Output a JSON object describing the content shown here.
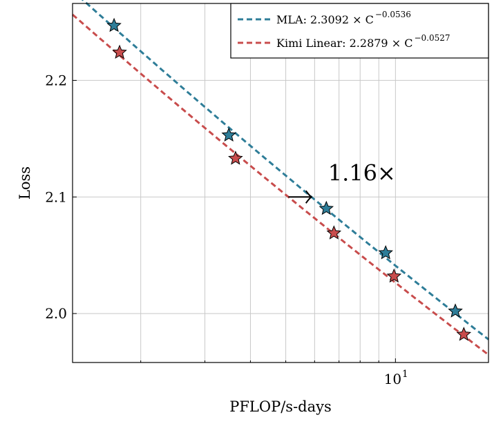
{
  "chart_data": {
    "type": "scatter",
    "xlabel": "PFLOP/s-days",
    "ylabel": "Loss",
    "xscale": "log",
    "xlim": [
      1.3,
      18.0
    ],
    "ylim": [
      1.958,
      2.266
    ],
    "grid": true,
    "legend_position": "top-right",
    "x_ticks": [
      {
        "value": 10,
        "base": "10",
        "exp": "1"
      }
    ],
    "y_ticks": [
      {
        "value": 2.0,
        "label": "2.0"
      },
      {
        "value": 2.1,
        "label": "2.1"
      },
      {
        "value": 2.2,
        "label": "2.2"
      }
    ],
    "series": [
      {
        "name": "MLA",
        "legend_text": "MLA: 2.3092 × C",
        "legend_exp": "−0.0536",
        "color": "#2e7d98",
        "fit": {
          "a": 2.3092,
          "b": -0.0536
        },
        "x": [
          1.69,
          3.49,
          6.46,
          9.4,
          14.6
        ],
        "y": [
          2.247,
          2.153,
          2.09,
          2.052,
          2.002
        ]
      },
      {
        "name": "Kimi Linear",
        "legend_text": "Kimi Linear: 2.2879 × C",
        "legend_exp": "−0.0527",
        "color": "#c84c4c",
        "fit": {
          "a": 2.2879,
          "b": -0.0527
        },
        "x": [
          1.75,
          3.64,
          6.78,
          9.91,
          15.4
        ],
        "y": [
          2.224,
          2.133,
          2.069,
          2.032,
          1.982
        ]
      }
    ],
    "annotation": {
      "text": "1.16×",
      "arrow_at_loss": 2.1
    }
  }
}
